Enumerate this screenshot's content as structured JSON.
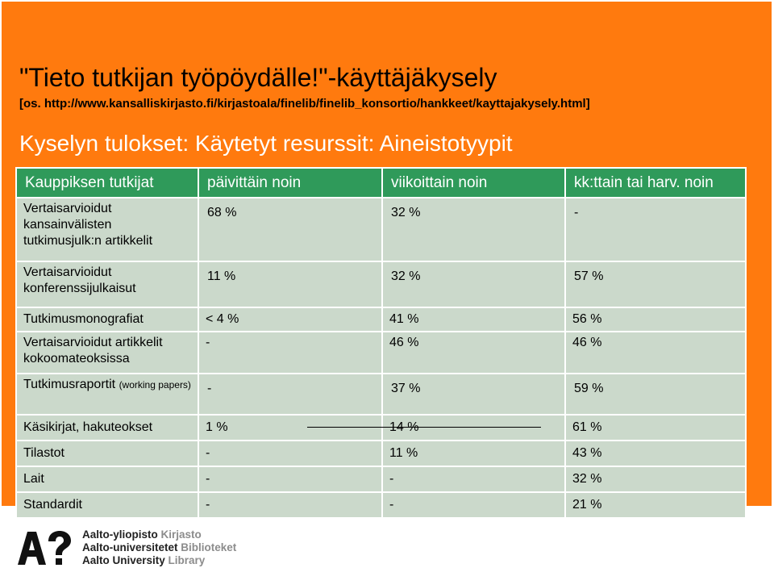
{
  "title": "\"Tieto tutkijan työpöydälle!\"-käyttäjäkysely",
  "source": "[os. http://www.kansalliskirjasto.fi/kirjastoala/finelib/finelib_konsortio/hankkeet/kayttajakysely.html]",
  "subtitle": "Kyselyn tulokset: Käytetyt resurssit: Aineistotyypit",
  "table": {
    "headers": [
      "Kauppiksen tutkijat",
      "päivittäin noin",
      "viikoittain noin",
      "kk:ttain tai harv. noin"
    ],
    "rows": [
      {
        "label": "Vertaisarvioidut kansainvälisten tutkimusjulk:n artikkelit",
        "label_small": "",
        "values": [
          "68 %",
          "32 %",
          "-"
        ]
      },
      {
        "label": "Vertaisarvioidut konferenssijulkaisut",
        "label_small": "",
        "values": [
          "11 %",
          "32 %",
          "57 %"
        ]
      },
      {
        "label": "Tutkimusmonografiat",
        "label_small": "",
        "values": [
          "< 4 %",
          "41 %",
          "56 %"
        ]
      },
      {
        "label": "Vertaisarvioidut artikkelit kokoomateoksissa",
        "label_small": "",
        "values": [
          "-",
          "46 %",
          "46 %"
        ]
      },
      {
        "label": "Tutkimusraportit",
        "label_small": "(working papers)",
        "values": [
          "-",
          "37 %",
          "59 %"
        ]
      },
      {
        "label": "Käsikirjat, hakuteokset",
        "label_small": "",
        "values": [
          "1 %",
          "14 %",
          "61 %"
        ]
      },
      {
        "label": "Tilastot",
        "label_small": "",
        "values": [
          "-",
          "11 %",
          "43 %"
        ]
      },
      {
        "label": "Lait",
        "label_small": "",
        "values": [
          "-",
          "-",
          "32 %"
        ]
      },
      {
        "label": "Standardit",
        "label_small": "",
        "values": [
          "-",
          "-",
          "21 %"
        ]
      }
    ]
  },
  "logo": {
    "mark": "A?",
    "lines": [
      {
        "name": "Aalto-yliopisto",
        "unit": "Kirjasto"
      },
      {
        "name": "Aalto-universitetet",
        "unit": "Biblioteket"
      },
      {
        "name": "Aalto University",
        "unit": "Library"
      }
    ],
    "colors": {
      "slide_background": "#ff7a0e",
      "header_green": "#2f9a5a",
      "cell_green": "#cbd9cb"
    }
  }
}
